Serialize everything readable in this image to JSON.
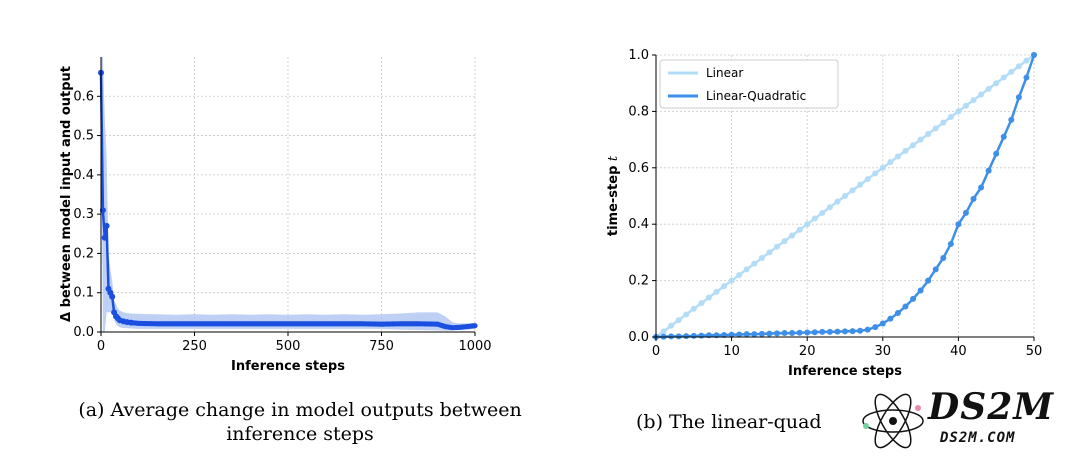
{
  "chart_data": [
    {
      "type": "line",
      "xlabel": "Inference steps",
      "ylabel": "Δ between model input and output",
      "xlim": [
        0,
        1000
      ],
      "ylim": [
        0,
        0.7
      ],
      "xticks": [
        "0",
        "250",
        "500",
        "750",
        "1000"
      ],
      "yticks": [
        "0.0",
        "0.1",
        "0.2",
        "0.3",
        "0.4",
        "0.5",
        "0.6"
      ],
      "grid": true,
      "band_color": "#a8c0f0",
      "line_color": "#1a4fe0",
      "series": [
        {
          "x": [
            0,
            5,
            10,
            15,
            20,
            25,
            30,
            35,
            40,
            45,
            50,
            60,
            70,
            80,
            100,
            150,
            200,
            250,
            300,
            350,
            400,
            450,
            500,
            550,
            600,
            650,
            700,
            750,
            800,
            850,
            900,
            920,
            940,
            960,
            980,
            1000
          ],
          "y": [
            0.66,
            0.31,
            0.24,
            0.27,
            0.11,
            0.1,
            0.09,
            0.05,
            0.04,
            0.035,
            0.03,
            0.027,
            0.025,
            0.024,
            0.022,
            0.021,
            0.021,
            0.021,
            0.021,
            0.021,
            0.021,
            0.021,
            0.021,
            0.021,
            0.021,
            0.021,
            0.021,
            0.02,
            0.021,
            0.021,
            0.02,
            0.014,
            0.011,
            0.012,
            0.014,
            0.016
          ],
          "upper": [
            0.7,
            0.7,
            0.55,
            0.45,
            0.2,
            0.16,
            0.13,
            0.08,
            0.07,
            0.06,
            0.055,
            0.05,
            0.048,
            0.047,
            0.046,
            0.045,
            0.044,
            0.045,
            0.044,
            0.045,
            0.044,
            0.045,
            0.044,
            0.045,
            0.044,
            0.045,
            0.044,
            0.045,
            0.047,
            0.05,
            0.05,
            0.04,
            0.025,
            0.022,
            0.022,
            0.024
          ],
          "lower": [
            0.6,
            0.0,
            0.0,
            0.05,
            0.05,
            0.05,
            0.05,
            0.03,
            0.02,
            0.015,
            0.012,
            0.01,
            0.01,
            0.009,
            0.008,
            0.008,
            0.008,
            0.008,
            0.008,
            0.008,
            0.008,
            0.008,
            0.008,
            0.008,
            0.008,
            0.008,
            0.008,
            0.008,
            0.006,
            0.005,
            0.004,
            0.003,
            0.004,
            0.005,
            0.006,
            0.008
          ]
        }
      ]
    },
    {
      "type": "line",
      "xlabel": "Inference steps",
      "ylabel": "time-step t",
      "xlim": [
        0,
        50
      ],
      "ylim": [
        0,
        1
      ],
      "xticks": [
        "0",
        "10",
        "20",
        "30",
        "40",
        "50"
      ],
      "yticks": [
        "0.0",
        "0.2",
        "0.4",
        "0.6",
        "0.8",
        "1.0"
      ],
      "grid": true,
      "legend_position": "top-left",
      "series": [
        {
          "name": "Linear",
          "color": "#b3dcf7",
          "x": [
            0,
            1,
            2,
            3,
            4,
            5,
            6,
            7,
            8,
            9,
            10,
            11,
            12,
            13,
            14,
            15,
            16,
            17,
            18,
            19,
            20,
            21,
            22,
            23,
            24,
            25,
            26,
            27,
            28,
            29,
            30,
            31,
            32,
            33,
            34,
            35,
            36,
            37,
            38,
            39,
            40,
            41,
            42,
            43,
            44,
            45,
            46,
            47,
            48,
            49,
            50
          ],
          "y": [
            0.0,
            0.02,
            0.04,
            0.06,
            0.08,
            0.1,
            0.12,
            0.14,
            0.16,
            0.18,
            0.2,
            0.22,
            0.24,
            0.26,
            0.28,
            0.3,
            0.32,
            0.34,
            0.36,
            0.38,
            0.4,
            0.42,
            0.44,
            0.46,
            0.48,
            0.5,
            0.52,
            0.54,
            0.56,
            0.58,
            0.6,
            0.62,
            0.64,
            0.66,
            0.68,
            0.7,
            0.72,
            0.74,
            0.76,
            0.78,
            0.8,
            0.82,
            0.84,
            0.86,
            0.88,
            0.9,
            0.92,
            0.94,
            0.96,
            0.98,
            1.0
          ]
        },
        {
          "name": "Linear-Quadratic",
          "color": "#3d8fe8",
          "x": [
            0,
            1,
            2,
            3,
            4,
            5,
            6,
            7,
            8,
            9,
            10,
            11,
            12,
            13,
            14,
            15,
            16,
            17,
            18,
            19,
            20,
            21,
            22,
            23,
            24,
            25,
            26,
            27,
            28,
            29,
            30,
            31,
            32,
            33,
            34,
            35,
            36,
            37,
            38,
            39,
            40,
            41,
            42,
            43,
            44,
            45,
            46,
            47,
            48,
            49,
            50
          ],
          "y": [
            0.0,
            0.001,
            0.002,
            0.002,
            0.003,
            0.004,
            0.005,
            0.006,
            0.006,
            0.007,
            0.008,
            0.009,
            0.01,
            0.01,
            0.011,
            0.012,
            0.013,
            0.014,
            0.014,
            0.015,
            0.016,
            0.017,
            0.018,
            0.018,
            0.019,
            0.02,
            0.021,
            0.022,
            0.026,
            0.035,
            0.048,
            0.065,
            0.085,
            0.108,
            0.135,
            0.165,
            0.2,
            0.24,
            0.28,
            0.33,
            0.4,
            0.44,
            0.49,
            0.53,
            0.59,
            0.65,
            0.71,
            0.77,
            0.85,
            0.92,
            1.0
          ]
        }
      ]
    }
  ],
  "captions": {
    "a": "(a) Average change in model outputs between inference steps",
    "b": "(b) The linear-quad"
  },
  "watermark": {
    "brand": "DS2M",
    "url": "DS2M.COM"
  }
}
